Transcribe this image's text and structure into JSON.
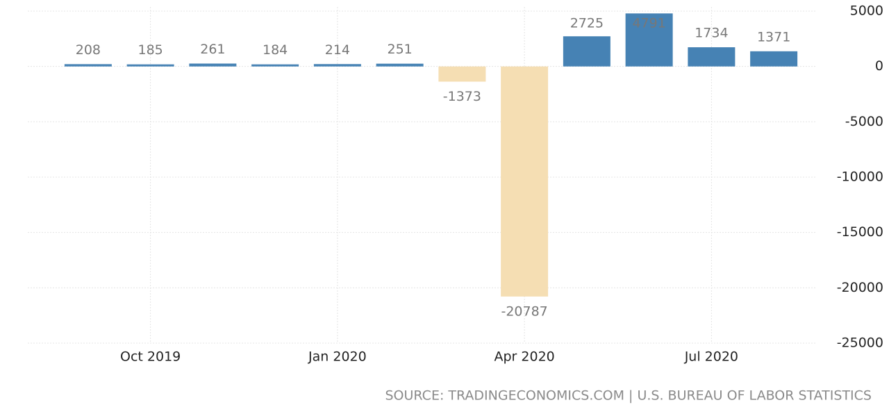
{
  "chart_data": {
    "type": "bar",
    "categories": [
      null,
      "Oct 2019",
      null,
      null,
      "Jan 2020",
      null,
      null,
      "Apr 2020",
      null,
      null,
      "Jul 2020",
      null
    ],
    "values": [
      208,
      185,
      261,
      184,
      214,
      251,
      -1373,
      -20787,
      2725,
      4791,
      1734,
      1371
    ],
    "color": "#4682b4",
    "negative_color": "#f5deb3",
    "ylim": [
      -25000,
      5000
    ],
    "yticks": [
      -25000,
      -20000,
      -15000,
      -10000,
      -5000,
      0,
      5000
    ],
    "grid": true,
    "source": "SOURCE: TRADINGECONOMICS.COM | U.S. BUREAU OF LABOR STATISTICS"
  }
}
